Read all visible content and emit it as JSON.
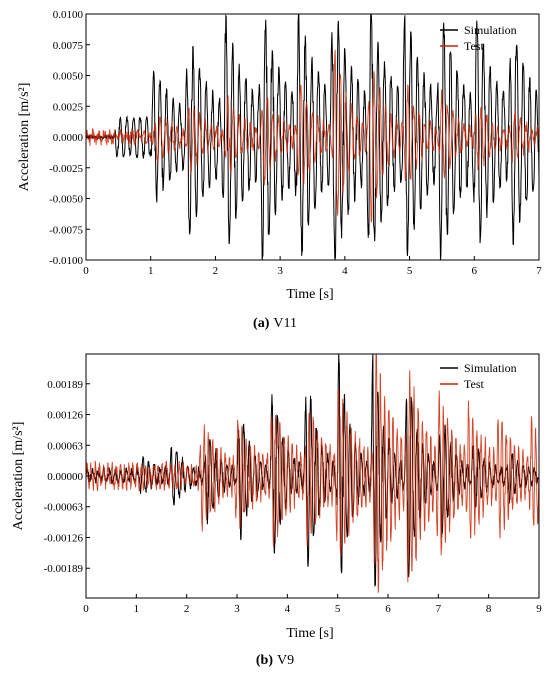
{
  "chart_data": [
    {
      "type": "line",
      "panel_letter": "(a)",
      "panel_name": "V11",
      "xlabel": "Time [s]",
      "ylabel": "Acceleration [m/s²]",
      "xlim": [
        0,
        7
      ],
      "ylim": [
        -0.01,
        0.01
      ],
      "xticks": [
        "0",
        "1",
        "2",
        "3",
        "4",
        "5",
        "6",
        "7"
      ],
      "yticks": [
        "-0.0100",
        "-0.0075",
        "-0.0050",
        "-0.0025",
        "0.0000",
        "0.0025",
        "0.0050",
        "0.0075",
        "0.0100"
      ],
      "legend_position": "top-right",
      "series": [
        {
          "name": "Simulation",
          "color": "#000000",
          "signal": {
            "duration": 7,
            "start": 0.45,
            "freq": 9.8,
            "noise": 0.00015,
            "pulses": [
              [
                1.05,
                0.0042
              ],
              [
                1.58,
                0.0063
              ],
              [
                2.15,
                0.0074
              ],
              [
                2.72,
                0.0079
              ],
              [
                3.28,
                0.0081
              ],
              [
                3.82,
                0.0082
              ],
              [
                4.38,
                0.0078
              ],
              [
                4.93,
                0.0075
              ],
              [
                5.48,
                0.0072
              ],
              [
                6.03,
                0.0068
              ],
              [
                6.58,
                0.0062
              ]
            ],
            "envelope_tau": 0.32,
            "floor": 0.0016
          }
        },
        {
          "name": "Test",
          "color": "#cc2200",
          "signal": {
            "duration": 7,
            "start": 0.0,
            "freq": 11.5,
            "noise": 0.00045,
            "pulses": [
              [
                1.1,
                0.0018
              ],
              [
                1.6,
                0.0027
              ],
              [
                2.18,
                0.0032
              ],
              [
                2.74,
                0.0035
              ],
              [
                3.3,
                0.0045
              ],
              [
                3.85,
                0.0072
              ],
              [
                4.4,
                0.0064
              ],
              [
                4.95,
                0.0038
              ],
              [
                5.5,
                0.0034
              ],
              [
                6.05,
                0.0025
              ],
              [
                6.6,
                0.0018
              ]
            ],
            "envelope_tau": 0.2,
            "floor": 0.0003
          }
        }
      ]
    },
    {
      "type": "line",
      "panel_letter": "(b)",
      "panel_name": "V9",
      "xlabel": "Time [s]",
      "ylabel": "Acceleration [m/s²]",
      "xlim": [
        0,
        9
      ],
      "ylim": [
        -0.0025,
        0.0025
      ],
      "xticks": [
        "0",
        "1",
        "2",
        "3",
        "4",
        "5",
        "6",
        "7",
        "8",
        "9"
      ],
      "yticks": [
        "-0.00189",
        "-0.00126",
        "-0.00063",
        "0.00000",
        "0.00063",
        "0.00126",
        "0.00189"
      ],
      "ytick_values": [
        -0.00189,
        -0.00126,
        -0.00063,
        0,
        0.00063,
        0.00126,
        0.00189
      ],
      "legend_position": "top-right",
      "series": [
        {
          "name": "Simulation",
          "color": "#000000",
          "signal": {
            "duration": 9,
            "start": 0.0,
            "freq": 9.0,
            "noise": 8e-05,
            "pulses": [
              [
                1.1,
                0.0003
              ],
              [
                1.7,
                0.0006
              ],
              [
                2.4,
                0.0009
              ],
              [
                3.05,
                0.0013
              ],
              [
                3.7,
                0.0017
              ],
              [
                4.38,
                0.0021
              ],
              [
                5.02,
                0.0024
              ],
              [
                5.7,
                0.0025
              ],
              [
                6.38,
                0.0021
              ],
              [
                7.05,
                0.0012
              ],
              [
                7.7,
                0.0006
              ],
              [
                8.4,
                0.0004
              ]
            ],
            "envelope_tau": 0.22,
            "floor": 0.0001
          }
        },
        {
          "name": "Test",
          "color": "#cc2200",
          "signal": {
            "duration": 9,
            "start": 0.0,
            "freq": 12.0,
            "noise": 0.00012,
            "pulses": [
              [
                2.3,
                0.0009
              ],
              [
                3.0,
                0.0009
              ],
              [
                3.7,
                0.0012
              ],
              [
                4.4,
                0.0011
              ],
              [
                5.0,
                0.0015
              ],
              [
                5.75,
                0.0024
              ],
              [
                6.4,
                0.0019
              ],
              [
                7.0,
                0.0012
              ],
              [
                7.6,
                0.001
              ],
              [
                8.2,
                0.0009
              ],
              [
                8.85,
                0.0008
              ]
            ],
            "envelope_tau": 0.35,
            "floor": 0.0002
          }
        }
      ]
    }
  ]
}
